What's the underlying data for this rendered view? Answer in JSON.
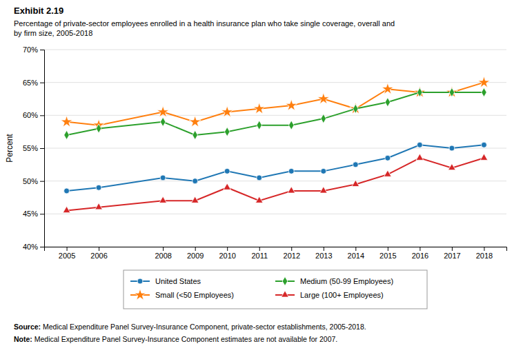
{
  "chart_data": {
    "type": "line",
    "title": "Exhibit 2.19",
    "subtitle": "Percentage of private-sector employees enrolled in a health insurance plan who take single coverage, overall and\nby firm size, 2005-2018",
    "ylabel": "Percent",
    "x": [
      2005,
      2006,
      2008,
      2009,
      2010,
      2011,
      2012,
      2013,
      2014,
      2015,
      2016,
      2017,
      2018
    ],
    "xlim": [
      2004.3,
      2018.7
    ],
    "xticks": [
      2005,
      2006,
      2008,
      2009,
      2010,
      2011,
      2012,
      2013,
      2014,
      2015,
      2016,
      2017,
      2018
    ],
    "ylim": [
      40,
      70
    ],
    "yticks": [
      {
        "value": 40,
        "label": "40%"
      },
      {
        "value": 45,
        "label": "45%"
      },
      {
        "value": 50,
        "label": "50%"
      },
      {
        "value": 55,
        "label": "55%"
      },
      {
        "value": 60,
        "label": "60%"
      },
      {
        "value": 65,
        "label": "65%"
      },
      {
        "value": 70,
        "label": "70%"
      }
    ],
    "grid": true,
    "legend": "bottom",
    "series": [
      {
        "name": "United States",
        "marker": "circle",
        "values": [
          48.5,
          49.0,
          50.5,
          50.0,
          51.5,
          50.5,
          51.5,
          51.5,
          52.5,
          53.5,
          55.5,
          55.0,
          55.5
        ]
      },
      {
        "name": "Small (<50 Employees)",
        "marker": "star",
        "values": [
          59.0,
          58.5,
          60.5,
          59.0,
          60.5,
          61.0,
          61.5,
          62.5,
          61.0,
          64.0,
          63.5,
          63.5,
          65.0
        ]
      },
      {
        "name": "Medium (50-99 Employees)",
        "marker": "diamond",
        "values": [
          57.0,
          58.0,
          59.0,
          57.0,
          57.5,
          58.5,
          58.5,
          59.5,
          61.0,
          62.0,
          63.5,
          63.5,
          63.5
        ]
      },
      {
        "name": "Large (100+ Employees)",
        "marker": "triangle",
        "values": [
          45.5,
          46.0,
          47.0,
          47.0,
          49.0,
          47.0,
          48.5,
          48.5,
          49.5,
          51.0,
          53.5,
          52.0,
          53.5
        ]
      }
    ],
    "annotations": [
      {
        "label": "Source:",
        "text": " Medical Expenditure Panel Survey-Insurance Component, private-sector establishments, 2005-2018."
      },
      {
        "label": "Note:",
        "text": " Medical Expenditure Panel Survey-Insurance Component estimates are not available for 2007."
      }
    ]
  }
}
